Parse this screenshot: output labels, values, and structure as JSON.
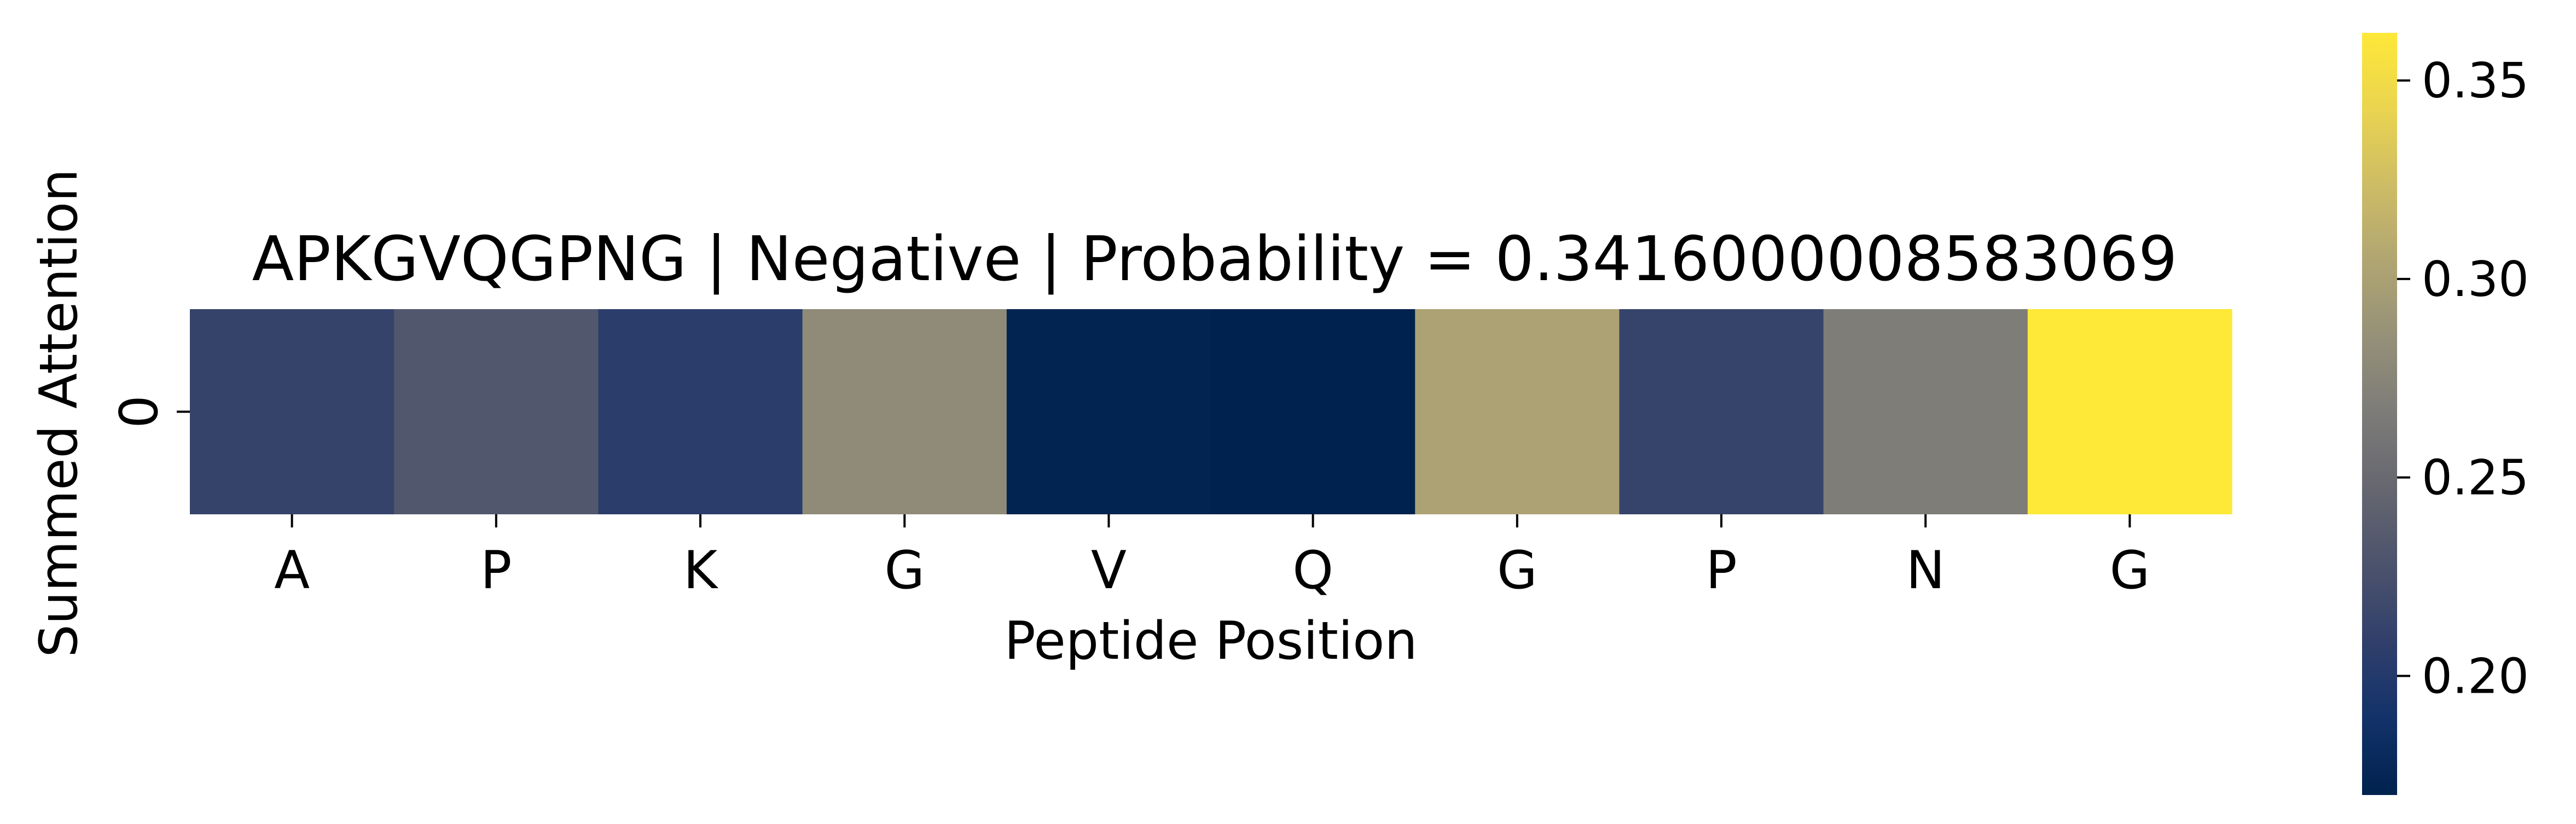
{
  "chart_data": {
    "type": "heatmap",
    "title": "APKGVQGPNG | Negative | Probability = 0.3416000008583069",
    "xlabel": "Peptide Position",
    "ylabel": "Summed Attention",
    "x_categories": [
      "A",
      "P",
      "K",
      "G",
      "V",
      "Q",
      "G",
      "P",
      "N",
      "G"
    ],
    "y_categories": [
      "0"
    ],
    "values": [
      [
        0.212,
        0.232,
        0.205,
        0.281,
        0.172,
        0.17,
        0.302,
        0.213,
        0.268,
        0.362
      ]
    ],
    "colormap": "cividis",
    "vmin": 0.17,
    "vmax": 0.362,
    "colorbar_ticks": [
      "0.20",
      "0.25",
      "0.30",
      "0.35"
    ],
    "colorbar_tick_values": [
      0.2,
      0.25,
      0.3,
      0.35
    ],
    "grid": false,
    "colorbar_placement": "right"
  }
}
